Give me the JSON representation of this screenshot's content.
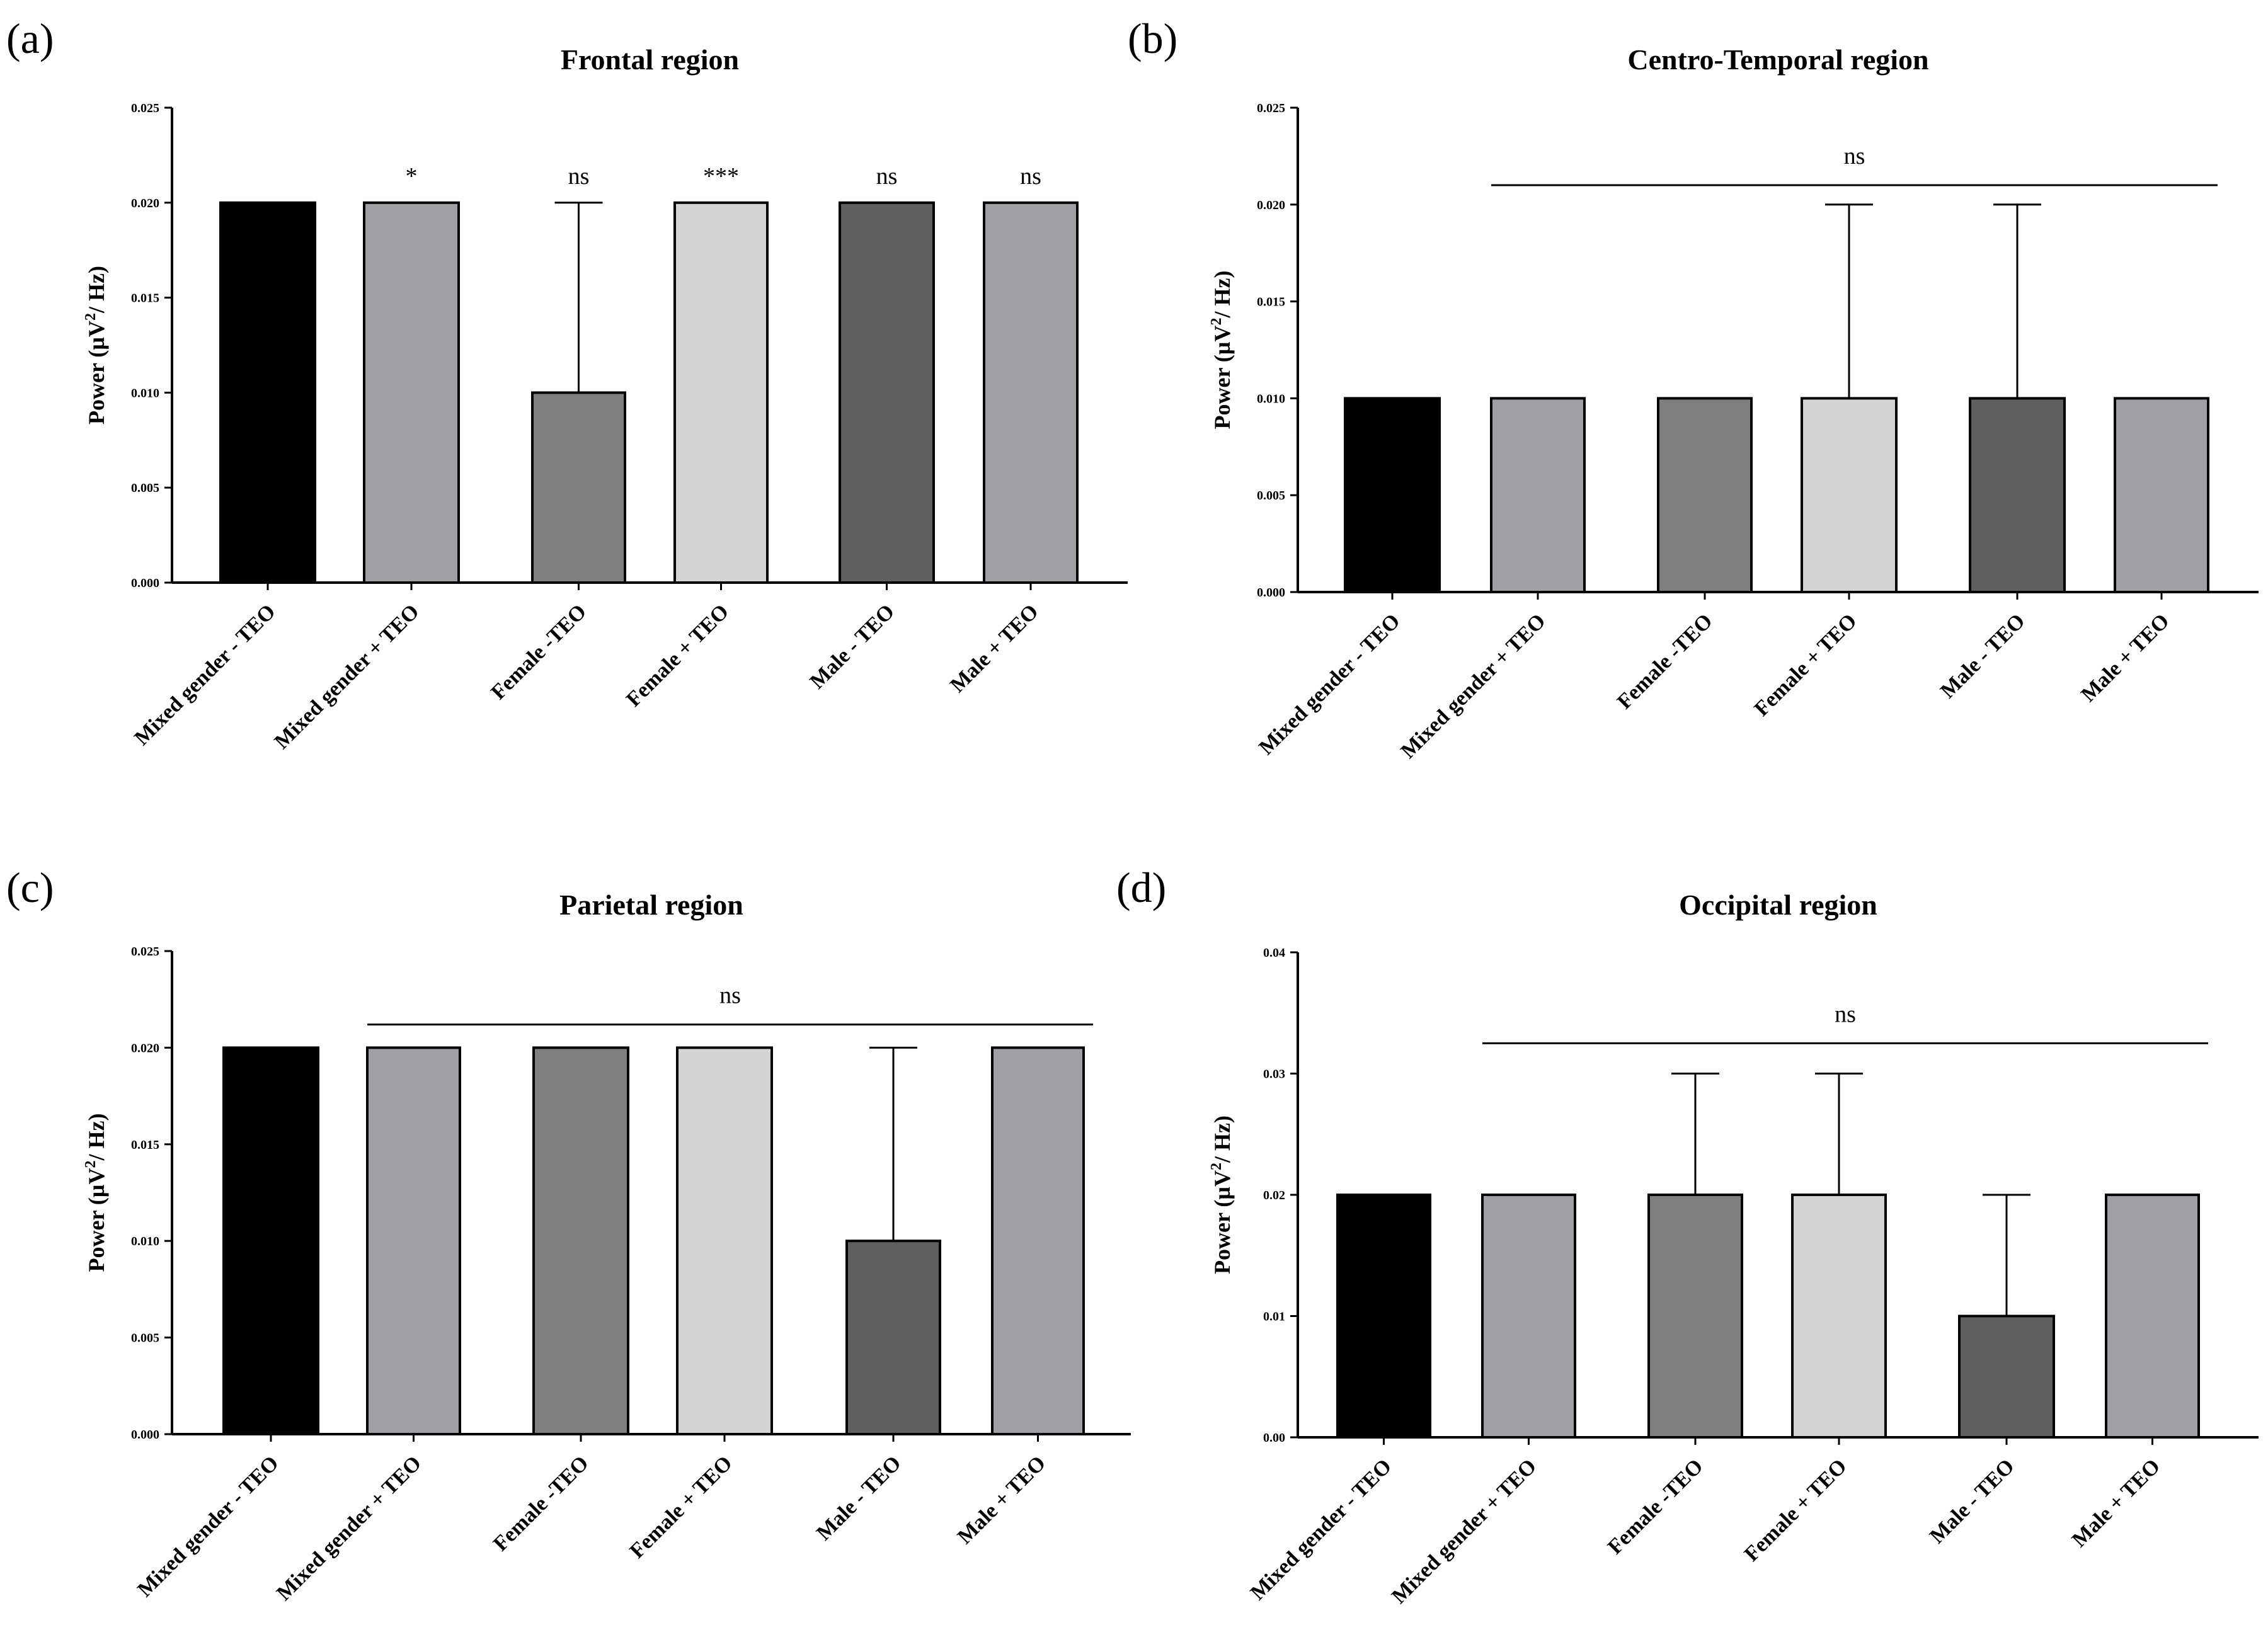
{
  "chart_data": [
    {
      "type": "bar",
      "panel": "(a)",
      "title": "Frontal region",
      "ylabel": "Power (µV²/ Hz)",
      "ylabel_main": "Power (µV",
      "ylabel_sup": "2",
      "ylabel_end": "/ Hz)",
      "ylim": [
        0,
        0.025
      ],
      "yticks": [
        "0.000",
        "0.005",
        "0.010",
        "0.015",
        "0.020",
        "0.025"
      ],
      "categories": [
        "Mixed gender - TEO",
        "Mixed gender + TEO",
        "Female -TEO",
        "Female + TEO",
        "Male - TEO",
        "Male + TEO"
      ],
      "values": [
        0.02,
        0.02,
        0.01,
        0.02,
        0.02,
        0.02
      ],
      "error_upper": [
        0.02,
        0.02,
        0.02,
        0.02,
        0.02,
        0.02
      ],
      "colors": [
        "#000000",
        "#a0a0a4",
        "#7f7f7f",
        "#d4d4d4",
        "#5f5f5f",
        "#a0a0a4"
      ],
      "significance": [
        "",
        "*",
        "ns",
        "***",
        "ns",
        "ns"
      ],
      "group_significance": null
    },
    {
      "type": "bar",
      "panel": "(b)",
      "title": "Centro-Temporal region",
      "ylabel": "Power (µV²/ Hz)",
      "ylabel_main": "Power (µV",
      "ylabel_sup": "2",
      "ylabel_end": "/ Hz)",
      "ylim": [
        0,
        0.025
      ],
      "yticks": [
        "0.000",
        "0.005",
        "0.010",
        "0.015",
        "0.020",
        "0.025"
      ],
      "categories": [
        "Mixed gender - TEO",
        "Mixed gender + TEO",
        "Female -TEO",
        "Female + TEO",
        "Male - TEO",
        "Male + TEO"
      ],
      "values": [
        0.01,
        0.01,
        0.01,
        0.01,
        0.01,
        0.01
      ],
      "error_upper": [
        0.01,
        0.01,
        0.01,
        0.02,
        0.02,
        0.01
      ],
      "colors": [
        "#000000",
        "#a0a0a4",
        "#7f7f7f",
        "#d4d4d4",
        "#5f5f5f",
        "#a0a0a4"
      ],
      "significance": [
        "",
        "",
        "",
        "",
        "",
        ""
      ],
      "group_significance": {
        "label": "ns",
        "from": 1,
        "to": 5,
        "value": 0.021
      }
    },
    {
      "type": "bar",
      "panel": "(c)",
      "title": "Parietal region",
      "ylabel": "Power (µV²/ Hz)",
      "ylabel_main": "Power (µV",
      "ylabel_sup": "2",
      "ylabel_end": "/ Hz)",
      "ylim": [
        0,
        0.025
      ],
      "yticks": [
        "0.000",
        "0.005",
        "0.010",
        "0.015",
        "0.020",
        "0.025"
      ],
      "categories": [
        "Mixed gender - TEO",
        "Mixed gender + TEO",
        "Female -TEO",
        "Female + TEO",
        "Male - TEO",
        "Male + TEO"
      ],
      "values": [
        0.02,
        0.02,
        0.02,
        0.02,
        0.01,
        0.02
      ],
      "error_upper": [
        0.02,
        0.02,
        0.02,
        0.02,
        0.02,
        0.02
      ],
      "colors": [
        "#000000",
        "#a0a0a4",
        "#7f7f7f",
        "#d4d4d4",
        "#5f5f5f",
        "#a0a0a4"
      ],
      "significance": [
        "",
        "",
        "",
        "",
        "",
        ""
      ],
      "group_significance": {
        "label": "ns",
        "from": 1,
        "to": 5,
        "value": 0.0212
      }
    },
    {
      "type": "bar",
      "panel": "(d)",
      "title": "Occipital region",
      "ylabel": "Power (µV²/ Hz)",
      "ylabel_main": "Power (µV",
      "ylabel_sup": "2",
      "ylabel_end": "/ Hz)",
      "ylim": [
        0,
        0.04
      ],
      "yticks": [
        "0.00",
        "0.01",
        "0.02",
        "0.03",
        "0.04"
      ],
      "categories": [
        "Mixed gender - TEO",
        "Mixed gender + TEO",
        "Female -TEO",
        "Female + TEO",
        "Male - TEO",
        "Male + TEO"
      ],
      "values": [
        0.02,
        0.02,
        0.02,
        0.02,
        0.01,
        0.02
      ],
      "error_upper": [
        0.02,
        0.02,
        0.03,
        0.03,
        0.02,
        0.02
      ],
      "colors": [
        "#000000",
        "#a0a0a4",
        "#7f7f7f",
        "#d4d4d4",
        "#5f5f5f",
        "#a0a0a4"
      ],
      "significance": [
        "",
        "",
        "",
        "",
        "",
        ""
      ],
      "group_significance": {
        "label": "ns",
        "from": 1,
        "to": 5,
        "value": 0.0325
      }
    }
  ]
}
